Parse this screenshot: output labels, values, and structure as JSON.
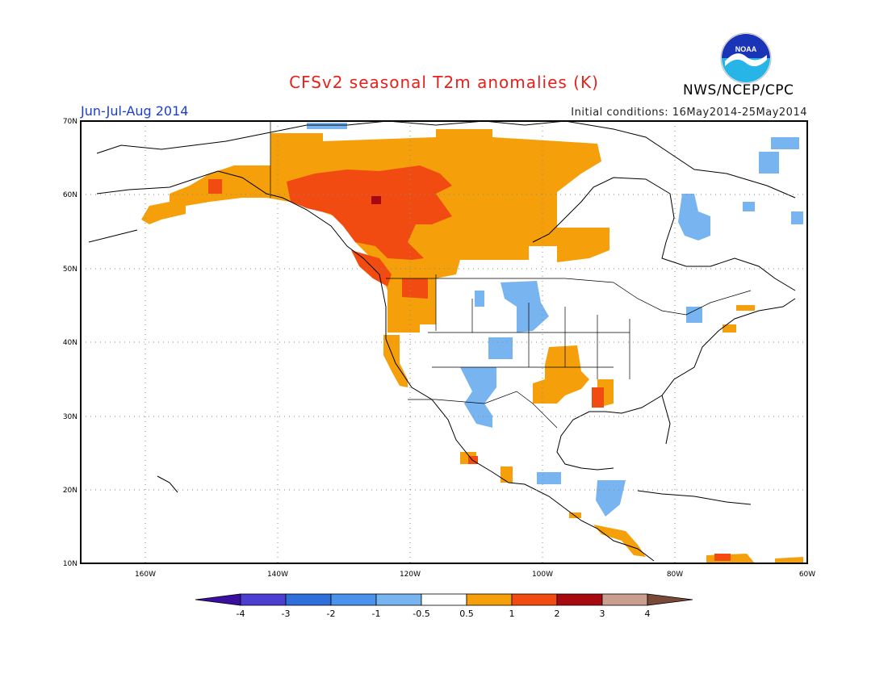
{
  "title": "CFSv2 seasonal T2m anomalies (K)",
  "season": "Jun-Jul-Aug 2014",
  "initial_conditions": "Initial conditions: 16May2014-25May2014",
  "organization": "NWS/NCEP/CPC",
  "logo_text": "NOAA",
  "lat_labels": [
    "70N",
    "60N",
    "50N",
    "40N",
    "30N",
    "20N",
    "10N"
  ],
  "lon_labels": [
    "160W",
    "140W",
    "120W",
    "100W",
    "80W",
    "60W"
  ],
  "colorbar": {
    "labels": [
      "-4",
      "-3",
      "-2",
      "-1",
      "-0.5",
      "0.5",
      "1",
      "2",
      "3",
      "4"
    ],
    "colors": [
      "#3a0fa0",
      "#4c3ed0",
      "#2e6fdc",
      "#4a92ec",
      "#78b4f0",
      "#ffffff",
      "#f5a00a",
      "#f24b12",
      "#a60a10",
      "#c9a090",
      "#7a4a38"
    ]
  },
  "colors": {
    "title": "#e8201c",
    "season": "#1a3fd0",
    "warm_05_1": "#f5a00a",
    "warm_1_2": "#f24b12",
    "warm_2_3": "#a60a10",
    "cool_05_1": "#78b4f0",
    "cool_1_2": "#4a92ec"
  }
}
